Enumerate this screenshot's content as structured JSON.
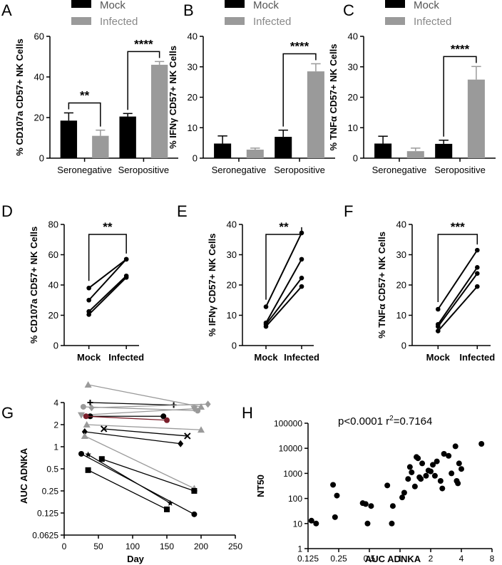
{
  "colors": {
    "mock": "#000000",
    "infected": "#9a9a9a",
    "dark_red": "#7a1f2b"
  },
  "legend": {
    "mock": "Mock",
    "infected": "Infected"
  },
  "chart_data": [
    {
      "id": "A",
      "type": "bar",
      "panel_letter": "A",
      "ylabel": "% CD107a CD57+ NK Cells",
      "ylim": [
        0,
        60
      ],
      "yticks": [
        "0",
        "20",
        "40",
        "60"
      ],
      "categories": [
        "Seronegative",
        "Seropositive"
      ],
      "series": [
        {
          "name": "Mock",
          "values": [
            18.5,
            20.5
          ],
          "errors": [
            3.8,
            1.5
          ]
        },
        {
          "name": "Infected",
          "values": [
            11,
            46
          ],
          "errors": [
            2.8,
            1.6
          ]
        }
      ],
      "significance": [
        "**",
        "****"
      ]
    },
    {
      "id": "B",
      "type": "bar",
      "panel_letter": "B",
      "ylabel": "% IFNγ CD57+ NK Cells",
      "ylim": [
        0,
        40
      ],
      "yticks": [
        "0",
        "10",
        "20",
        "30",
        "40"
      ],
      "categories": [
        "Seronegative",
        "Seropositive"
      ],
      "series": [
        {
          "name": "Mock",
          "values": [
            4.8,
            7
          ],
          "errors": [
            2.5,
            2.2
          ]
        },
        {
          "name": "Infected",
          "values": [
            2.8,
            28.5
          ],
          "errors": [
            0.5,
            2.5
          ]
        }
      ],
      "significance": [
        "",
        "****"
      ]
    },
    {
      "id": "C",
      "type": "bar",
      "panel_letter": "C",
      "ylabel": "% TNFα CD57+ NK Cells",
      "ylim": [
        0,
        40
      ],
      "yticks": [
        "0",
        "10",
        "20",
        "30",
        "40"
      ],
      "categories": [
        "Seronegative",
        "Seropositive"
      ],
      "series": [
        {
          "name": "Mock",
          "values": [
            4.8,
            4.7
          ],
          "errors": [
            2.4,
            1.2
          ]
        },
        {
          "name": "Infected",
          "values": [
            2.3,
            25.8
          ],
          "errors": [
            1.0,
            4.3
          ]
        }
      ],
      "significance": [
        "",
        "****"
      ]
    },
    {
      "id": "D",
      "type": "line",
      "panel_letter": "D",
      "ylabel": "% CD107a CD57+ NK Cells",
      "ylim": [
        0,
        80
      ],
      "yticks": [
        "0",
        "20",
        "40",
        "60",
        "80"
      ],
      "categories": [
        "Mock",
        "Infected"
      ],
      "pairs": [
        [
          38,
          57
        ],
        [
          30,
          57
        ],
        [
          22.5,
          46
        ],
        [
          20.5,
          45
        ]
      ],
      "significance": "**"
    },
    {
      "id": "E",
      "type": "line",
      "panel_letter": "E",
      "ylabel": "% IFNγ CD57+ NK Cells",
      "ylim": [
        0,
        40
      ],
      "yticks": [
        "0",
        "10",
        "20",
        "30",
        "40"
      ],
      "categories": [
        "Mock",
        "Infected"
      ],
      "pairs": [
        [
          12.8,
          37.2
        ],
        [
          7.5,
          28.5
        ],
        [
          7,
          22.3
        ],
        [
          6.3,
          19.5
        ]
      ],
      "significance": "**"
    },
    {
      "id": "F",
      "type": "line",
      "panel_letter": "F",
      "ylabel": "% TNFα CD57+ NK Cells",
      "ylim": [
        0,
        40
      ],
      "yticks": [
        "0",
        "10",
        "20",
        "30",
        "40"
      ],
      "categories": [
        "Mock",
        "Infected"
      ],
      "pairs": [
        [
          12,
          31.5
        ],
        [
          7,
          25.8
        ],
        [
          6.3,
          23.8
        ],
        [
          4.8,
          19.5
        ]
      ],
      "significance": "***"
    },
    {
      "id": "G",
      "type": "line",
      "panel_letter": "G",
      "xlabel": "Day",
      "ylabel": "AUC ADNKA",
      "xlim": [
        0,
        250
      ],
      "ylim": [
        0.0625,
        4
      ],
      "yscale": "log2",
      "xticks": [
        "0",
        "50",
        "100",
        "150",
        "200",
        "250"
      ],
      "yticks": [
        "0.0625",
        "0.125",
        "0.25",
        "0.5",
        "1",
        "2",
        "4"
      ],
      "subjects": [
        {
          "color": "gray",
          "marker": "triangle",
          "points": [
            [
              35,
              7
            ],
            [
              200,
              3.5
            ]
          ]
        },
        {
          "color": "black",
          "marker": "plus",
          "points": [
            [
              38,
              4
            ],
            [
              160,
              3.7
            ]
          ]
        },
        {
          "color": "gray",
          "marker": "circle",
          "points": [
            [
              28,
              3.5
            ],
            [
              195,
              3.1
            ]
          ]
        },
        {
          "color": "gray",
          "marker": "diamond",
          "points": [
            [
              40,
              3.4
            ],
            [
              210,
              3.8
            ]
          ]
        },
        {
          "color": "gray",
          "marker": "triangle-down",
          "points": [
            [
              25,
              2.7
            ],
            [
              190,
              3.3
            ]
          ]
        },
        {
          "color": "black",
          "marker": "circle",
          "points": [
            [
              38,
              2.6
            ],
            [
              145,
              2.6
            ]
          ]
        },
        {
          "color": "dark_red",
          "marker": "circle",
          "points": [
            [
              32,
              2.6
            ],
            [
              150,
              2.3
            ]
          ]
        },
        {
          "color": "gray",
          "marker": "triangle",
          "points": [
            [
              33,
              2.0
            ],
            [
              200,
              1.7
            ]
          ]
        },
        {
          "color": "black",
          "marker": "cross",
          "points": [
            [
              58,
              1.75
            ],
            [
              180,
              1.4
            ]
          ]
        },
        {
          "color": "black",
          "marker": "diamond",
          "points": [
            [
              30,
              1.6
            ],
            [
              170,
              1.1
            ]
          ]
        },
        {
          "color": "gray",
          "marker": "triangle",
          "points": [
            [
              30,
              1.4
            ],
            [
              190,
              0.27
            ]
          ]
        },
        {
          "color": "black",
          "marker": "circle",
          "points": [
            [
              25,
              0.8
            ],
            [
              190,
              0.12
            ]
          ]
        },
        {
          "color": "black",
          "marker": "square",
          "points": [
            [
              55,
              0.68
            ],
            [
              190,
              0.25
            ]
          ]
        },
        {
          "color": "black",
          "marker": "star",
          "points": [
            [
              35,
              0.78
            ],
            [
              155,
              0.17
            ]
          ]
        },
        {
          "color": "black",
          "marker": "square",
          "points": [
            [
              35,
              0.48
            ],
            [
              150,
              0.14
            ]
          ]
        }
      ]
    },
    {
      "id": "H",
      "type": "scatter",
      "panel_letter": "H",
      "xlabel": "AUC ADNKA",
      "ylabel": "NT50",
      "xscale": "log2",
      "yscale": "log10",
      "xlim": [
        0.125,
        8
      ],
      "ylim": [
        1,
        100000
      ],
      "xticks": [
        "0.125",
        "0.25",
        "0.5",
        "1",
        "2",
        "4",
        "8"
      ],
      "yticks": [
        "1",
        "10",
        "100",
        "1000",
        "10000",
        "100000"
      ],
      "annotation_text": "p<0.0001 r",
      "annotation_sup": "2",
      "annotation_tail": "=0.7164",
      "points": [
        [
          0.135,
          13
        ],
        [
          0.15,
          10
        ],
        [
          0.22,
          350
        ],
        [
          0.24,
          130
        ],
        [
          0.23,
          18
        ],
        [
          0.43,
          65
        ],
        [
          0.46,
          60
        ],
        [
          0.52,
          50
        ],
        [
          0.48,
          10
        ],
        [
          0.75,
          330
        ],
        [
          0.83,
          10
        ],
        [
          0.85,
          50
        ],
        [
          1.05,
          110
        ],
        [
          1.1,
          170
        ],
        [
          1.2,
          600
        ],
        [
          1.25,
          1800
        ],
        [
          1.3,
          1100
        ],
        [
          1.4,
          300
        ],
        [
          1.45,
          4500
        ],
        [
          1.5,
          4000
        ],
        [
          1.55,
          700
        ],
        [
          1.6,
          600
        ],
        [
          1.65,
          2500
        ],
        [
          1.8,
          800
        ],
        [
          1.9,
          1300
        ],
        [
          2.0,
          1200
        ],
        [
          2.1,
          2200
        ],
        [
          2.3,
          3000
        ],
        [
          2.5,
          500
        ],
        [
          2.6,
          250
        ],
        [
          2.7,
          6000
        ],
        [
          3.0,
          5000
        ],
        [
          3.2,
          1000
        ],
        [
          3.5,
          12000
        ],
        [
          3.6,
          500
        ],
        [
          3.7,
          400
        ],
        [
          3.8,
          2500
        ],
        [
          4.0,
          1500
        ],
        [
          6.3,
          15000
        ],
        [
          2.2,
          800
        ]
      ]
    }
  ]
}
